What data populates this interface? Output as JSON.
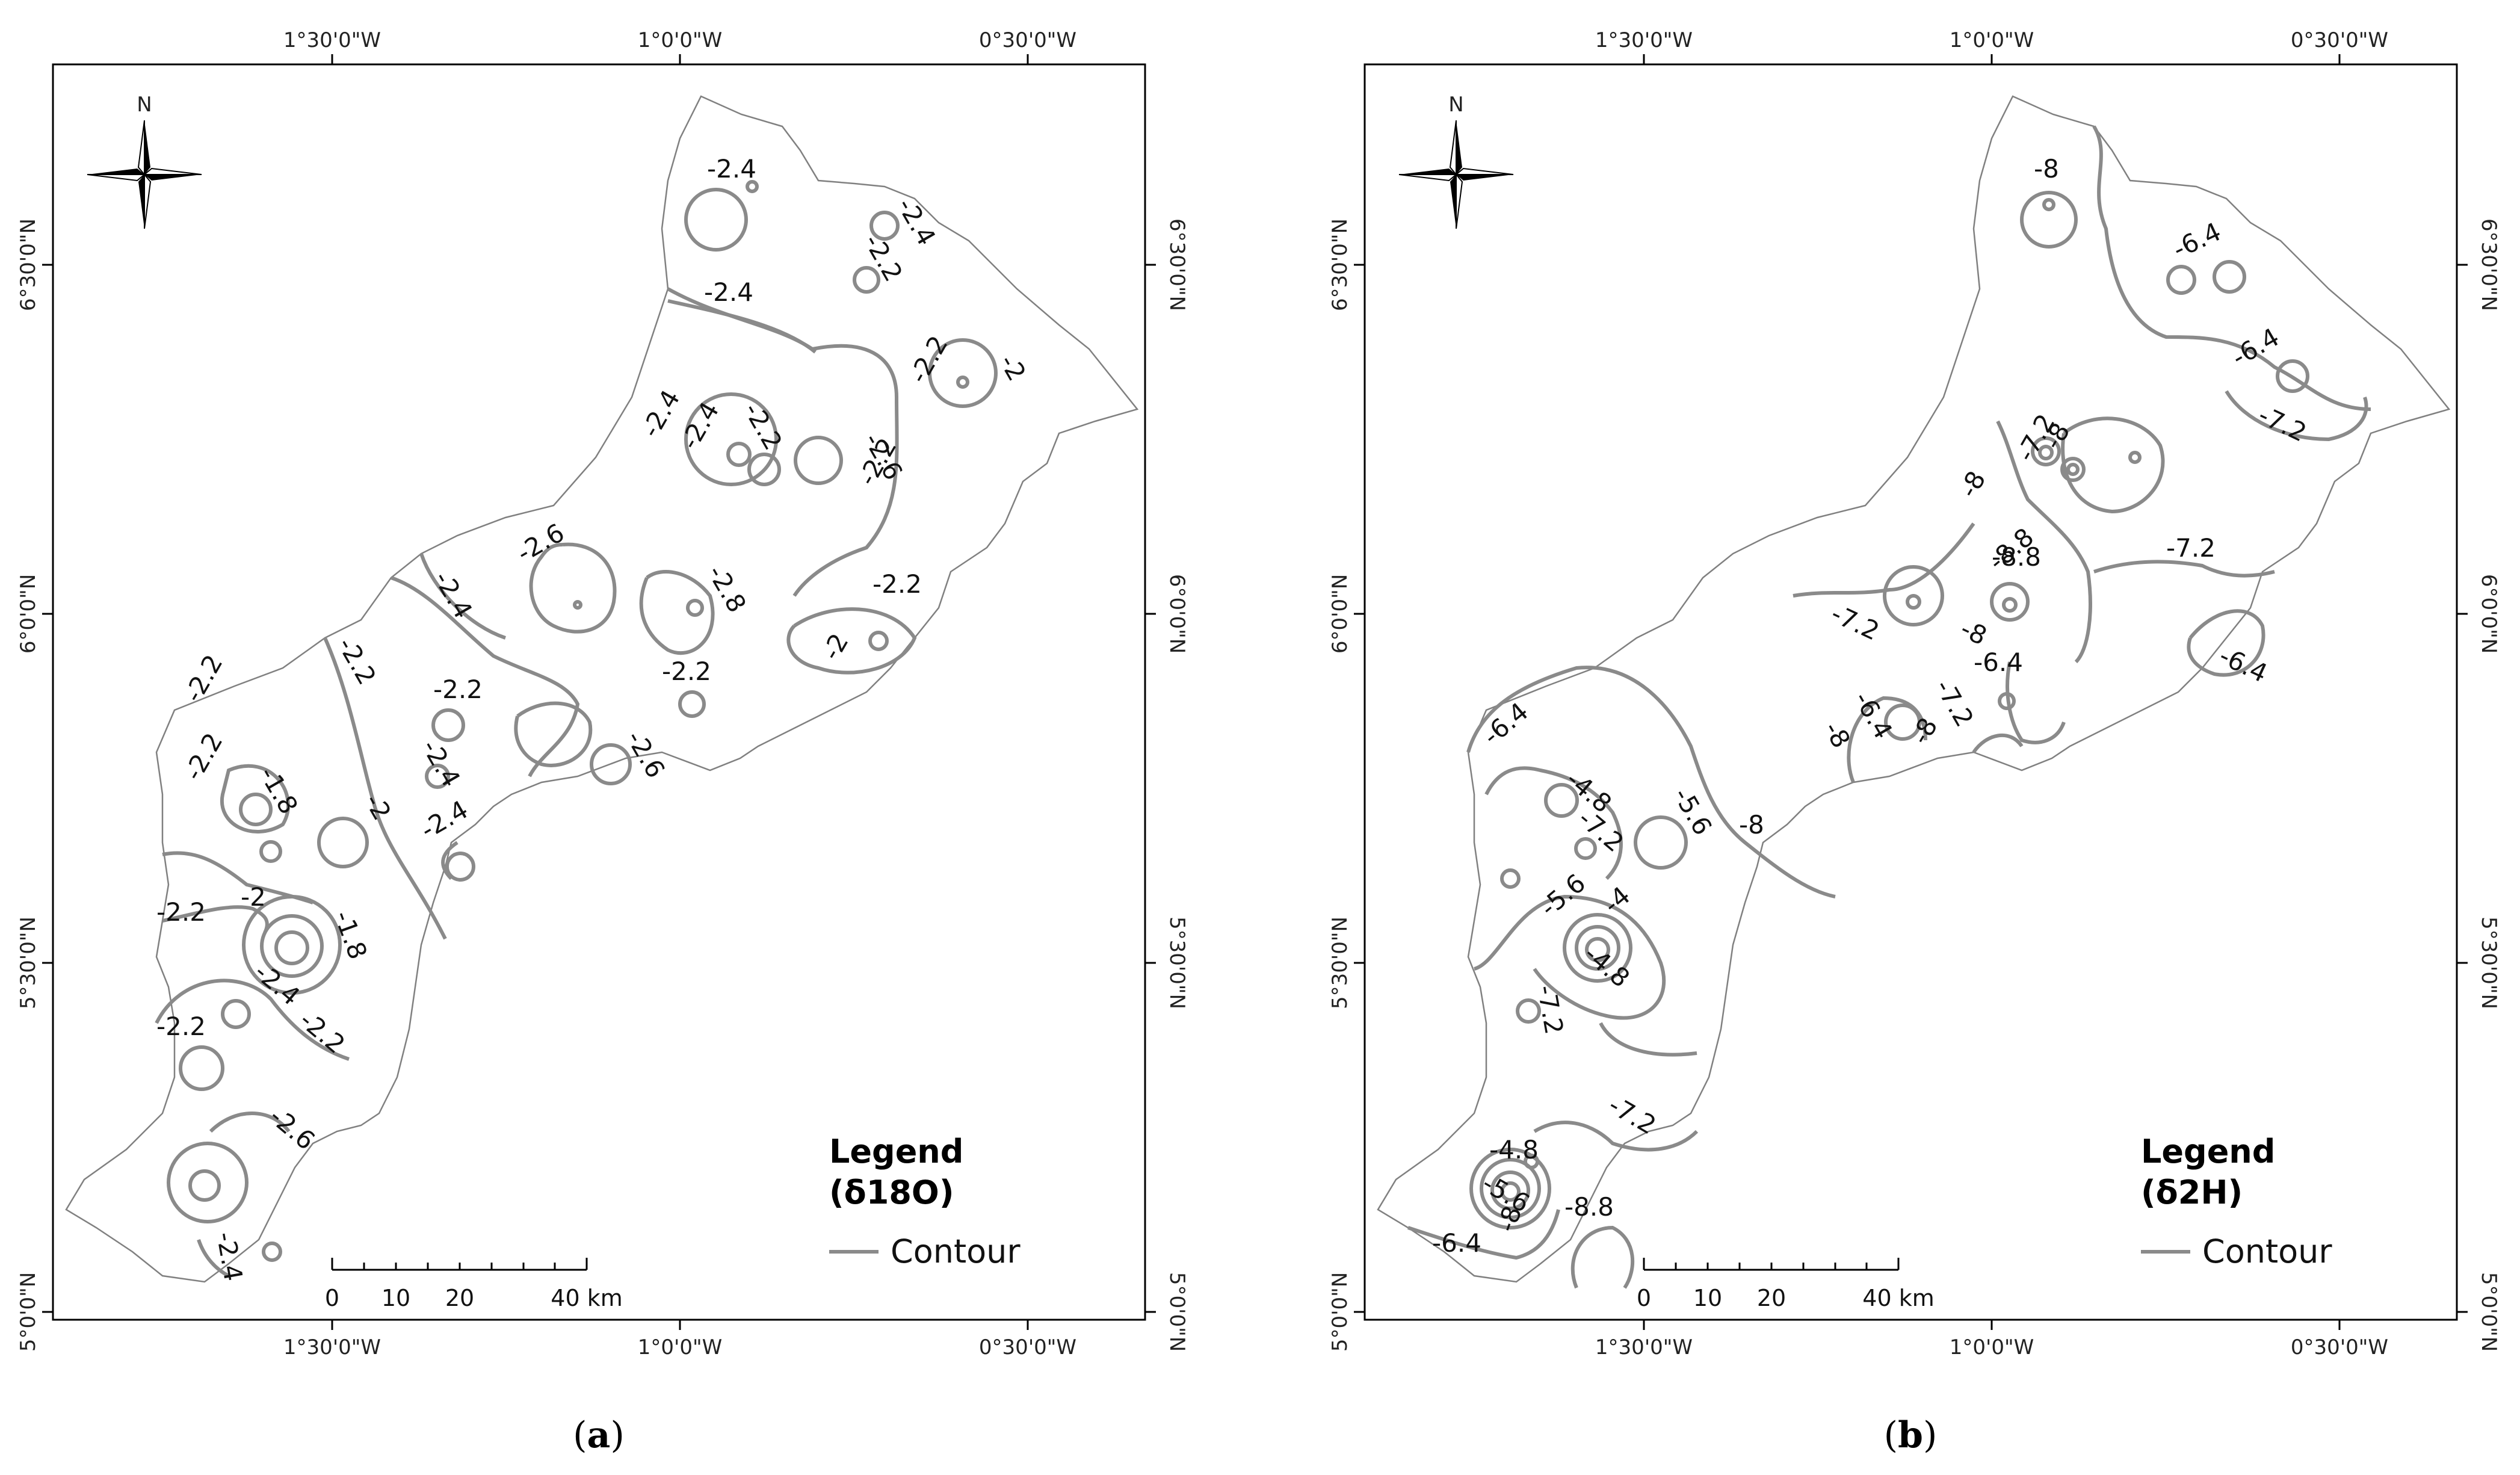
{
  "panels": [
    {
      "caption_letter": "a",
      "legend_title_line1": "Legend",
      "legend_title_line2": "(δ18O)",
      "legend_item": "Contour",
      "north_label": "N",
      "lon_labels": [
        "1°30'0\"W",
        "1°0'0\"W",
        "0°30'0\"W"
      ],
      "lat_labels": [
        "6°30'0\"N",
        "6°0'0\"N",
        "5°30'0\"N",
        "5°0'0\"N"
      ],
      "scale_labels": [
        "0",
        "10",
        "20",
        "40 km"
      ],
      "contour_labels": [
        "-2.4",
        "-2.4",
        "-2.4",
        "-2.2",
        "-2.4",
        "-2.2",
        "-2.2",
        "-2",
        "-2.4",
        "-2.2",
        "-2.6",
        "-2.6",
        "-2.4",
        "-2.8",
        "-2.2",
        "-2.2",
        "-2",
        "-2.2",
        "-2.2",
        "-2.4",
        "-2.6",
        "-2.2",
        "-1.8",
        "-2",
        "-2.4",
        "-2.2",
        "-2",
        "-1.8",
        "-2.4",
        "-2.2",
        "-2.2",
        "-2.6",
        "-2.2",
        "-2.4"
      ],
      "contour_color": "#8a8a8a"
    },
    {
      "caption_letter": "b",
      "legend_title_line1": "Legend",
      "legend_title_line2": "(δ2H)",
      "legend_item": "Contour",
      "north_label": "N",
      "lon_labels": [
        "1°30'0\"W",
        "1°0'0\"W",
        "0°30'0\"W"
      ],
      "lat_labels": [
        "6°30'0\"N",
        "6°0'0\"N",
        "5°30'0\"N",
        "5°0'0\"N"
      ],
      "scale_labels": [
        "0",
        "10",
        "20",
        "40 km"
      ],
      "contour_labels": [
        "-8",
        "-6.4",
        "-6.4",
        "-7.2",
        "-7.2",
        "-8",
        "-7.2",
        "-8",
        "-8.8",
        "-8.8",
        "-7.2",
        "-8",
        "-6.4",
        "-6.4",
        "-7.2",
        "-6.4",
        "-8",
        "-8",
        "-6.4",
        "-4.8",
        "-5.6",
        "-7.2",
        "-8",
        "-5.6",
        "-4",
        "-4.8",
        "-7.2",
        "-7.2",
        "-4.8",
        "-5.6",
        "-8.8",
        "-6.4",
        "-8"
      ],
      "contour_color": "#8a8a8a"
    }
  ]
}
